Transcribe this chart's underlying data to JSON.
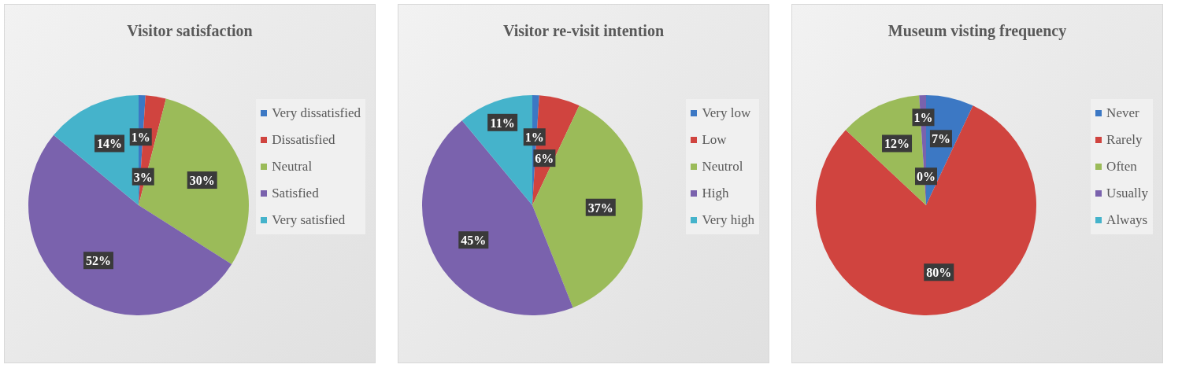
{
  "chart_data": [
    {
      "type": "pie",
      "title": "Visitor satisfaction",
      "categories": [
        "Very dissatisfied",
        "Dissatisfied",
        "Neutral",
        "Satisfied",
        "Very satisfied"
      ],
      "values": [
        1,
        3,
        30,
        52,
        14
      ],
      "value_labels": [
        "1%",
        "3%",
        "30%",
        "52%",
        "14%"
      ],
      "colors": [
        "#3c78c4",
        "#d0443f",
        "#9bbb59",
        "#7a62ad",
        "#45b3cb"
      ],
      "legend": "right"
    },
    {
      "type": "pie",
      "title": "Visitor re-visit intention",
      "categories": [
        "Very low",
        "Low",
        "Neutrol",
        "High",
        "Very high"
      ],
      "values": [
        1,
        6,
        37,
        45,
        11
      ],
      "value_labels": [
        "1%",
        "6%",
        "37%",
        "45%",
        "11%"
      ],
      "colors": [
        "#3c78c4",
        "#d0443f",
        "#9bbb59",
        "#7a62ad",
        "#45b3cb"
      ],
      "legend": "right"
    },
    {
      "type": "pie",
      "title": "Museum visting frequency",
      "categories": [
        "Never",
        "Rarely",
        "Often",
        "Usually",
        "Always"
      ],
      "values": [
        7,
        80,
        12,
        1,
        0
      ],
      "value_labels": [
        "7%",
        "80%",
        "12%",
        "1%",
        "0%"
      ],
      "colors": [
        "#3c78c4",
        "#d0443f",
        "#9bbb59",
        "#7a62ad",
        "#45b3cb"
      ],
      "legend": "right"
    }
  ]
}
